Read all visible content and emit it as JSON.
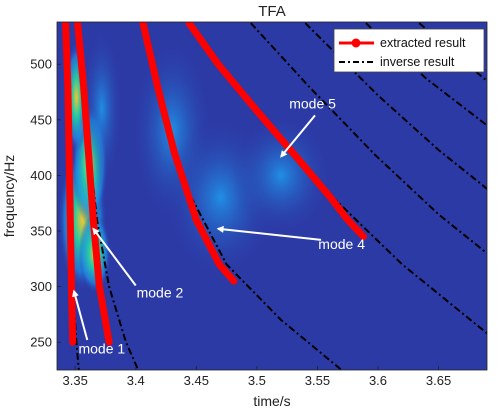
{
  "chart_data": {
    "type": "line",
    "title": "TFA",
    "xlabel": "time/s",
    "ylabel": "frequency/Hz",
    "xlim": [
      3.335,
      3.69
    ],
    "ylim": [
      225,
      538
    ],
    "xticks": [
      3.35,
      3.4,
      3.45,
      3.5,
      3.55,
      3.6,
      3.65
    ],
    "xtick_labels": [
      "3.35",
      "3.4",
      "3.45",
      "3.5",
      "3.55",
      "3.6",
      "3.65"
    ],
    "yticks": [
      250,
      300,
      350,
      400,
      450,
      500
    ],
    "ytick_labels": [
      "250",
      "300",
      "350",
      "400",
      "450",
      "500"
    ],
    "grid": false,
    "legend_position": "top-right",
    "legend": [
      "extracted result",
      "inverse result"
    ],
    "colors": {
      "extracted": "#ff0000",
      "inverse": "#000000",
      "background": "#2c3aa6",
      "energy_high": "#29d0a0",
      "energy_peak": "#f5c630",
      "annotation": "#ffffff"
    },
    "series": [
      {
        "name": "extracted result",
        "style": "solid-red-thick",
        "segments": [
          [
            [
              3.342,
              537
            ],
            [
              3.344,
              480
            ],
            [
              3.345,
              420
            ],
            [
              3.346,
              360
            ],
            [
              3.347,
              300
            ],
            [
              3.348,
              250
            ]
          ],
          [
            [
              3.352,
              537
            ],
            [
              3.357,
              480
            ],
            [
              3.361,
              420
            ],
            [
              3.365,
              360
            ],
            [
              3.37,
              300
            ],
            [
              3.378,
              250
            ]
          ],
          [
            [
              3.406,
              537
            ],
            [
              3.418,
              480
            ],
            [
              3.432,
              420
            ],
            [
              3.45,
              360
            ],
            [
              3.469,
              320
            ],
            [
              3.481,
              305
            ]
          ],
          [
            [
              3.444,
              537
            ],
            [
              3.468,
              500
            ],
            [
              3.5,
              458
            ],
            [
              3.534,
              415
            ],
            [
              3.561,
              380
            ],
            [
              3.575,
              360
            ],
            [
              3.588,
              345
            ]
          ]
        ]
      },
      {
        "name": "inverse result",
        "style": "dash-dot-black",
        "segments": [
          [
            [
              3.342,
              537
            ],
            [
              3.344,
              440
            ],
            [
              3.346,
              360
            ],
            [
              3.348,
              300
            ],
            [
              3.351,
              250
            ],
            [
              3.353,
              225
            ]
          ],
          [
            [
              3.352,
              537
            ],
            [
              3.36,
              440
            ],
            [
              3.368,
              360
            ],
            [
              3.378,
              300
            ],
            [
              3.392,
              250
            ],
            [
              3.402,
              225
            ]
          ],
          [
            [
              3.406,
              537
            ],
            [
              3.424,
              450
            ],
            [
              3.446,
              380
            ],
            [
              3.475,
              320
            ],
            [
              3.52,
              270
            ],
            [
              3.57,
              225
            ]
          ],
          [
            [
              3.444,
              537
            ],
            [
              3.482,
              480
            ],
            [
              3.52,
              432
            ],
            [
              3.563,
              380
            ],
            [
              3.62,
              320
            ],
            [
              3.69,
              258
            ]
          ],
          [
            [
              3.495,
              537
            ],
            [
              3.543,
              480
            ],
            [
              3.598,
              418
            ],
            [
              3.65,
              365
            ],
            [
              3.69,
              330
            ]
          ],
          [
            [
              3.54,
              537
            ],
            [
              3.6,
              472
            ],
            [
              3.65,
              423
            ],
            [
              3.69,
              388
            ]
          ],
          [
            [
              3.59,
              537
            ],
            [
              3.64,
              487
            ],
            [
              3.69,
              445
            ]
          ],
          [
            [
              3.634,
              537
            ],
            [
              3.668,
              505
            ],
            [
              3.69,
              485
            ]
          ]
        ]
      }
    ],
    "annotations": [
      {
        "text": "mode 1",
        "text_at": [
          3.372,
          240
        ],
        "arrow_from": [
          3.36,
          252
        ],
        "arrow_to": [
          3.349,
          296
        ]
      },
      {
        "text": "mode 2",
        "text_at": [
          3.42,
          290
        ],
        "arrow_from": [
          3.4,
          301
        ],
        "arrow_to": [
          3.365,
          352
        ]
      },
      {
        "text": "mode 4",
        "text_at": [
          3.57,
          334
        ],
        "arrow_from": [
          3.553,
          342
        ],
        "arrow_to": [
          3.468,
          352
        ]
      },
      {
        "text": "mode 5",
        "text_at": [
          3.546,
          460
        ],
        "arrow_from": [
          3.548,
          454
        ],
        "arrow_to": [
          3.52,
          417
        ]
      }
    ]
  }
}
